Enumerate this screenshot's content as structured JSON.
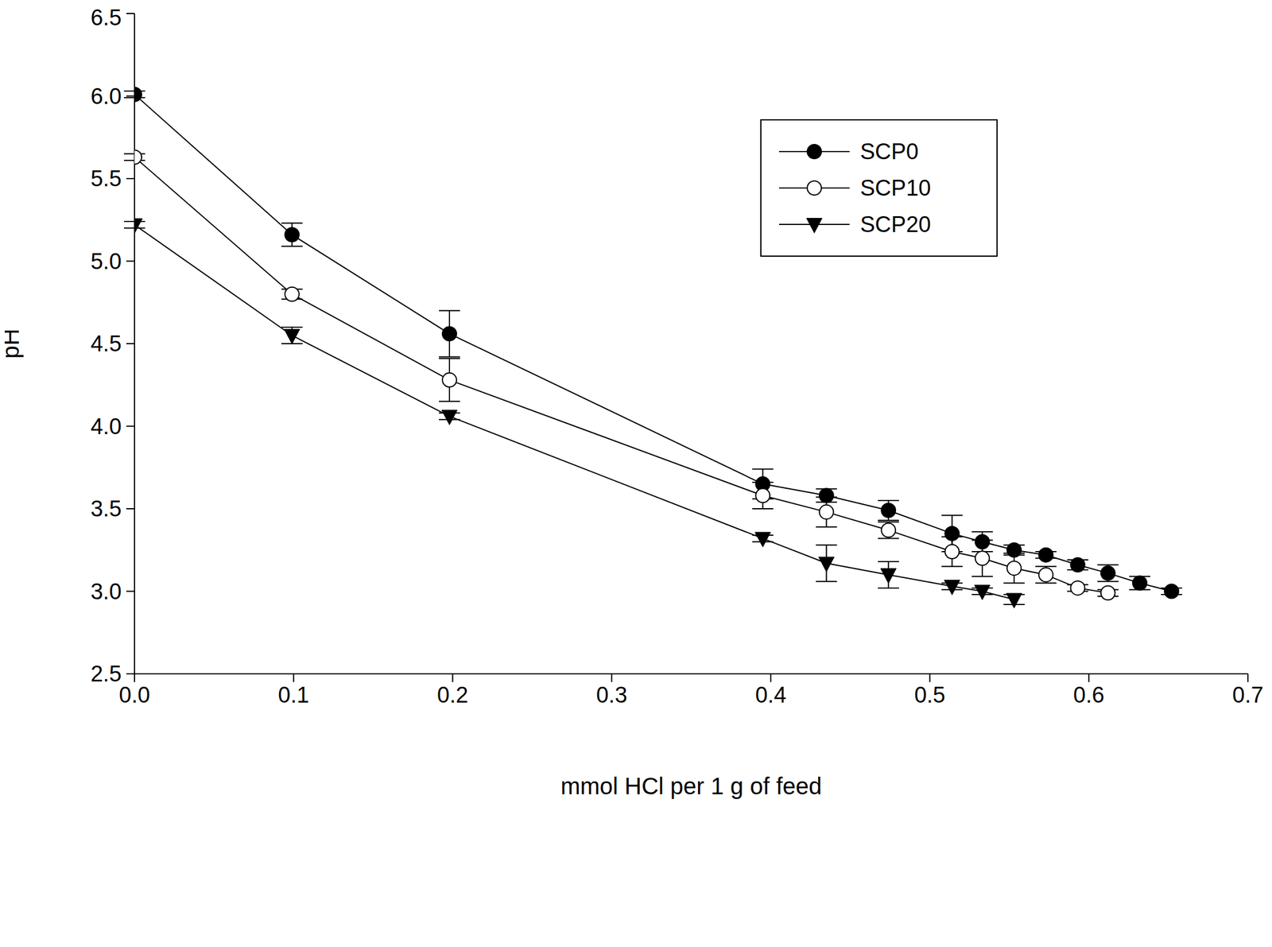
{
  "chart_data": {
    "type": "line",
    "x_label": "mmol HCl per 1 g of feed",
    "y_label": "pH",
    "x": [
      0,
      0.099,
      0.198,
      0.395,
      0.435,
      0.474,
      0.514,
      0.533,
      0.553,
      0.573,
      0.593,
      0.612,
      0.632,
      0.652
    ],
    "series": [
      {
        "name": "SCP0",
        "color": "#000000",
        "marker": "filled_circle",
        "values": [
          6.01,
          5.16,
          4.56,
          3.65,
          3.58,
          3.49,
          3.35,
          3.3,
          3.25,
          3.22,
          3.16,
          3.11,
          3.05,
          3.0
        ],
        "errors": [
          0.02,
          0.07,
          0.14,
          0.09,
          0.04,
          0.06,
          0.11,
          0.06,
          0.03,
          0.02,
          0.03,
          0.05,
          0.04,
          0.02
        ]
      },
      {
        "name": "SCP10",
        "color": "#000000",
        "marker": "open_circle",
        "values": [
          5.63,
          4.8,
          4.28,
          3.58,
          3.48,
          3.37,
          3.24,
          3.2,
          3.14,
          3.1,
          3.02,
          2.99,
          null,
          null
        ],
        "errors": [
          0.02,
          0.03,
          0.13,
          0.08,
          0.09,
          0.05,
          0.09,
          0.11,
          0.09,
          0.05,
          0.02,
          0.02,
          null,
          null
        ]
      },
      {
        "name": "SCP20",
        "color": "#000000",
        "marker": "triangle_down",
        "values": [
          5.22,
          4.55,
          4.06,
          3.32,
          3.17,
          3.1,
          3.03,
          3.0,
          2.95,
          null,
          null,
          null,
          null,
          null
        ],
        "errors": [
          0.02,
          0.05,
          0.02,
          0.02,
          0.11,
          0.08,
          0.02,
          0.02,
          0.03,
          null,
          null,
          null,
          null,
          null
        ]
      }
    ],
    "xlim": [
      0,
      0.7
    ],
    "xticks": [
      {
        "value": 0,
        "label": "0.0"
      },
      0.1,
      0.2,
      0.3,
      0.4,
      0.5,
      0.6,
      0.7
    ],
    "ylim": [
      2.5,
      6.5
    ],
    "yticks": [
      2.5,
      {
        "value": 3,
        "label": "3.0"
      },
      3.5,
      {
        "value": 4,
        "label": "4.0"
      },
      4.5,
      {
        "value": 5,
        "label": "5.0"
      },
      5.5,
      {
        "value": 6,
        "label": "6.0"
      },
      6.5
    ],
    "grid": false,
    "legend": "upper right"
  }
}
